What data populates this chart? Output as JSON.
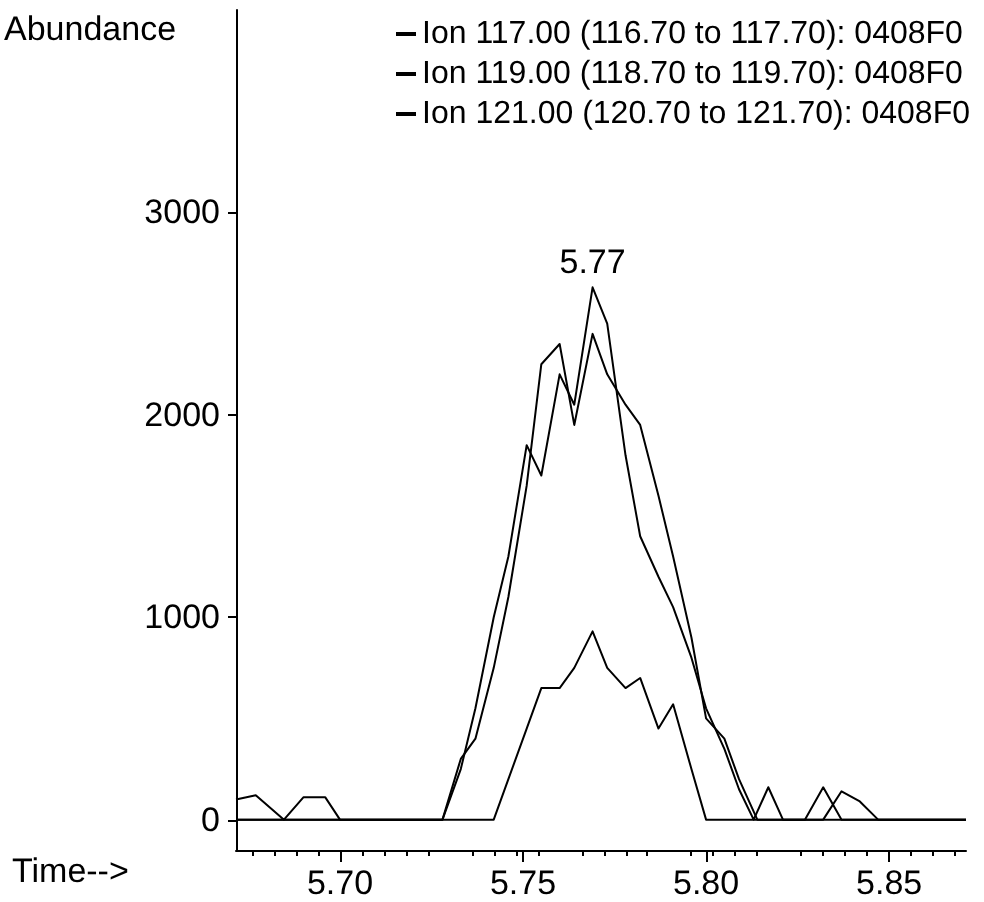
{
  "chart_data": {
    "type": "line",
    "xlabel": "Time-->",
    "ylabel": "Abundance",
    "xlim": [
      5.6716,
      5.871
    ],
    "xticks": [
      {
        "value": 5.7,
        "label": "5.70"
      },
      5.75,
      {
        "value": 5.8,
        "label": "5.80"
      },
      5.85
    ],
    "ylim": [
      -150,
      4000
    ],
    "yticks": [
      0,
      1000,
      2000,
      3000
    ],
    "grid": false,
    "legend": "top right",
    "marker": "none",
    "line_style": "solid",
    "annotations": [
      {
        "text": "5.77",
        "x": 5.769,
        "y": 2630
      }
    ],
    "series": [
      {
        "name": "Ion 117.00 (116.70 to 117.70): 0408F0",
        "color": "#000000",
        "x": [
          5.672,
          5.728,
          5.733,
          5.737,
          5.742,
          5.746,
          5.751,
          5.755,
          5.76,
          5.764,
          5.769,
          5.773,
          5.778,
          5.782,
          5.787,
          5.791,
          5.796,
          5.8,
          5.805,
          5.809,
          5.813,
          5.817,
          5.821,
          5.871
        ],
        "values": [
          0,
          0,
          250,
          550,
          1000,
          1300,
          1850,
          1700,
          2200,
          2050,
          2630,
          2450,
          1800,
          1400,
          1200,
          1050,
          800,
          550,
          350,
          150,
          0,
          160,
          0,
          0
        ]
      },
      {
        "name": "Ion 119.00 (118.70 to 119.70): 0408F0",
        "color": "#000000",
        "x": [
          5.6716,
          5.677,
          5.6847,
          5.69,
          5.696,
          5.7,
          5.728,
          5.733,
          5.737,
          5.742,
          5.746,
          5.751,
          5.755,
          5.76,
          5.764,
          5.769,
          5.773,
          5.778,
          5.782,
          5.787,
          5.791,
          5.796,
          5.8,
          5.805,
          5.809,
          5.814,
          5.827,
          5.832,
          5.837,
          5.871
        ],
        "values": [
          100,
          120,
          0,
          110,
          110,
          0,
          0,
          300,
          400,
          750,
          1100,
          1650,
          2250,
          2350,
          1950,
          2400,
          2200,
          2050,
          1950,
          1600,
          1300,
          900,
          500,
          400,
          200,
          0,
          0,
          160,
          0,
          0
        ]
      },
      {
        "name": "Ion 121.00 (120.70 to 121.70): 0408F0",
        "color": "#000000",
        "x": [
          5.672,
          5.742,
          5.746,
          5.751,
          5.755,
          5.76,
          5.764,
          5.769,
          5.773,
          5.778,
          5.782,
          5.787,
          5.791,
          5.796,
          5.8,
          5.832,
          5.837,
          5.842,
          5.847,
          5.871
        ],
        "values": [
          0,
          0,
          200,
          450,
          650,
          650,
          750,
          930,
          750,
          650,
          700,
          450,
          570,
          250,
          0,
          0,
          140,
          90,
          0,
          0
        ]
      }
    ]
  }
}
